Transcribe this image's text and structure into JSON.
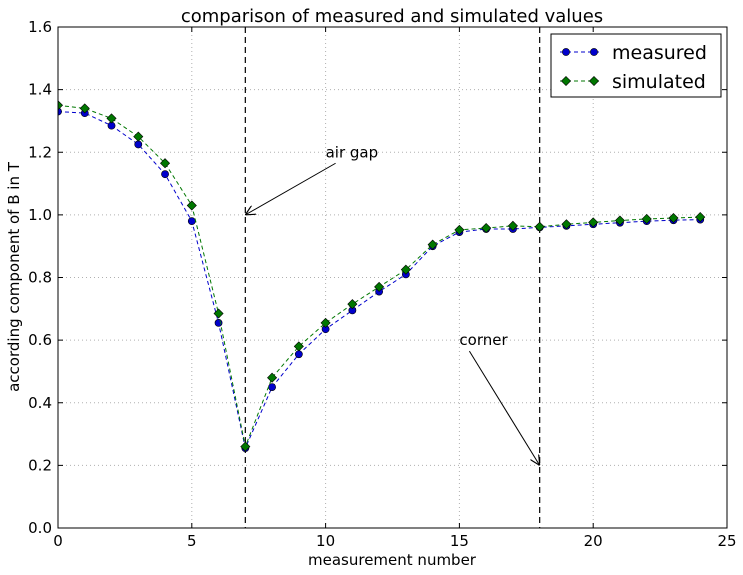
{
  "chart_data": {
    "type": "line",
    "title": "comparison of measured and simulated values",
    "xlabel": "measurement number",
    "ylabel": "according component of B in T",
    "xlim": [
      0,
      25
    ],
    "ylim": [
      0.0,
      1.6
    ],
    "xticks": [
      0,
      5,
      10,
      15,
      20,
      25
    ],
    "xtick_labels": [
      "0",
      "5",
      "10",
      "15",
      "20",
      "25"
    ],
    "yticks": [
      0.0,
      0.2,
      0.4,
      0.6,
      0.8,
      1.0,
      1.2,
      1.4,
      1.6
    ],
    "ytick_labels": [
      "0.0",
      "0.2",
      "0.4",
      "0.6",
      "0.8",
      "1.0",
      "1.2",
      "1.4",
      "1.6"
    ],
    "grid": true,
    "legend_position": "top-right",
    "x": [
      0,
      1,
      2,
      3,
      4,
      5,
      6,
      7,
      8,
      9,
      10,
      11,
      12,
      13,
      14,
      15,
      16,
      17,
      18,
      19,
      20,
      21,
      22,
      23,
      24
    ],
    "series": [
      {
        "name": "measured",
        "color": "#0000cc",
        "marker": "circle",
        "values": [
          1.33,
          1.325,
          1.285,
          1.225,
          1.13,
          0.98,
          0.655,
          0.255,
          0.45,
          0.555,
          0.635,
          0.695,
          0.755,
          0.81,
          0.9,
          0.945,
          0.955,
          0.955,
          0.96,
          0.965,
          0.97,
          0.975,
          0.98,
          0.983,
          0.985
        ]
      },
      {
        "name": "simulated",
        "color": "#007700",
        "marker": "diamond",
        "values": [
          1.35,
          1.34,
          1.308,
          1.25,
          1.165,
          1.03,
          0.685,
          0.26,
          0.48,
          0.58,
          0.655,
          0.715,
          0.77,
          0.825,
          0.905,
          0.952,
          0.958,
          0.965,
          0.962,
          0.97,
          0.976,
          0.982,
          0.987,
          0.99,
          0.993
        ]
      }
    ],
    "vlines": [
      7,
      18
    ],
    "annotations": [
      {
        "text": "air gap",
        "text_x": 10,
        "text_y": 1.2,
        "arrow_x": 7,
        "arrow_y": 1.0
      },
      {
        "text": "corner",
        "text_x": 15,
        "text_y": 0.6,
        "arrow_x": 18,
        "arrow_y": 0.2
      }
    ]
  }
}
